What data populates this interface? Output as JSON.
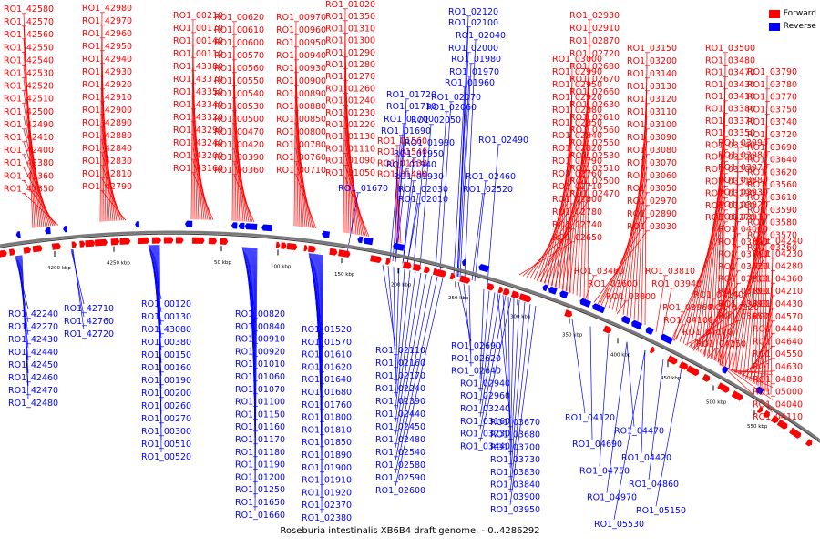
{
  "caption": "Roseburia intestinalis XB6B4 draft genome. - 0..4286292",
  "legend": [
    {
      "label": "Forward",
      "color": "#ff0000"
    },
    {
      "label": "Reverse",
      "color": "#0000ff"
    }
  ],
  "colors": {
    "forward": "#ff0000",
    "reverse": "#0000ff",
    "backbone": "#808080",
    "ticks": "#000000"
  },
  "scale_labels": [
    "4200 kbp",
    "4250 kbp",
    "50 kbp",
    "100 kbp",
    "150 kbp",
    "200 kbp",
    "250 kbp",
    "300 kbp",
    "350 kbp",
    "400 kbp",
    "450 kbp",
    "500 kbp",
    "550 kbp"
  ],
  "forward_columns": [
    [
      "RO1_42580",
      "RO1_42570",
      "RO1_42560",
      "RO1_42550",
      "RO1_42540",
      "RO1_42530",
      "RO1_42520",
      "RO1_42510",
      "RO1_42500",
      "RO1_42490",
      "RO1_42410",
      "RO1_42400",
      "RO1_42380",
      "RO1_42360",
      "RO1_42350"
    ],
    [
      "RO1_42980",
      "RO1_42970",
      "RO1_42960",
      "RO1_42950",
      "RO1_42940",
      "RO1_42930",
      "RO1_42920",
      "RO1_42910",
      "RO1_42900",
      "RO1_42890",
      "RO1_42880",
      "RO1_42840",
      "RO1_42830",
      "RO1_42810",
      "RO1_42790"
    ],
    [
      "RO1_00210",
      "RO1_00170",
      "RO1_00140",
      "RO1_00110",
      "RO1_43380",
      "RO1_43370",
      "RO1_43350",
      "RO1_43340",
      "RO1_43320",
      "RO1_43290",
      "RO1_43240",
      "RO1_43200",
      "RO1_43160"
    ],
    [
      "RO1_00620",
      "RO1_00610",
      "RO1_00600",
      "RO1_00570",
      "RO1_00560",
      "RO1_00550",
      "RO1_00540",
      "RO1_00530",
      "RO1_00500",
      "RO1_00470",
      "RO1_00420",
      "RO1_00390",
      "RO1_00360"
    ],
    [
      "RO1_00970",
      "RO1_00960",
      "RO1_00950",
      "RO1_00940",
      "RO1_00930",
      "RO1_00900",
      "RO1_00890",
      "RO1_00880",
      "RO1_00850",
      "RO1_00800",
      "RO1_00780",
      "RO1_00760",
      "RO1_00710"
    ],
    [
      "RO1_01020",
      "RO1_01350",
      "RO1_01310",
      "RO1_01300",
      "RO1_01290",
      "RO1_01280",
      "RO1_01270",
      "RO1_01260",
      "RO1_01240",
      "RO1_01230",
      "RO1_01220",
      "RO1_01130",
      "RO1_01110",
      "RO1_01090",
      "RO1_01050"
    ],
    [
      "RO1_01560",
      "RO1_01540",
      "RO1_01530",
      "RO1_01490"
    ],
    [
      "RO1_02930",
      "RO1_02910",
      "RO1_02870",
      "RO1_02720",
      "RO1_02680",
      "RO1_02670",
      "RO1_02660",
      "RO1_02630",
      "RO1_02610",
      "RO1_02560",
      "RO1_02550",
      "RO1_02530",
      "RO1_02510",
      "RO1_02500",
      "RO1_02470"
    ],
    [
      "RO1_03000",
      "RO1_02990",
      "RO1_02950",
      "RO1_02920",
      "RO1_02880",
      "RO1_02850",
      "RO1_02840",
      "RO1_02820",
      "RO1_02790",
      "RO1_02760",
      "RO1_02710",
      "RO1_02800",
      "RO1_02780",
      "RO1_02740",
      "RO1_02650"
    ],
    [
      "RO1_03150",
      "RO1_03200",
      "RO1_03140",
      "RO1_03130",
      "RO1_03120",
      "RO1_03110",
      "RO1_03100",
      "RO1_03090",
      "RO1_03080",
      "RO1_03070",
      "RO1_03060",
      "RO1_03050",
      "RO1_02970",
      "RO1_02890",
      "RO1_03030"
    ],
    [
      "RO1_03500",
      "RO1_03480",
      "RO1_03470",
      "RO1_03430",
      "RO1_03410",
      "RO1_03380",
      "RO1_03370",
      "RO1_03350",
      "RO1_03340",
      "RO1_03320",
      "RO1_03300",
      "RO1_03310",
      "RO1_03290",
      "RO1_03280",
      "RO1_03270"
    ],
    [
      "RO1_03790",
      "RO1_03780",
      "RO1_03770",
      "RO1_03750",
      "RO1_03740",
      "RO1_03720",
      "RO1_03690",
      "RO1_03640",
      "RO1_03620",
      "RO1_03560",
      "RO1_03610",
      "RO1_03590",
      "RO1_03580",
      "RO1_03570",
      "RO1_03260"
    ],
    [
      "RO1_03990",
      "RO1_03980",
      "RO1_03970",
      "RO1_03880",
      "RO1_03930",
      "RO1_03920",
      "RO1_03910",
      "RO1_04000",
      "RO1_03890",
      "RO1_03710",
      "RO1_03420",
      "RO1_03210",
      "RO1_03190",
      "RO1_03390",
      "RO1_03650"
    ],
    [
      "RO1_04240",
      "RO1_04230",
      "RO1_04280",
      "RO1_04360",
      "RO1_04210",
      "RO1_04430",
      "RO1_04570",
      "RO1_04440",
      "RO1_04640",
      "RO1_04550",
      "RO1_04630",
      "RO1_04830",
      "RO1_05000",
      "RO1_04040",
      "RO1_04110"
    ]
  ],
  "reverse_top_labels": [
    "RO1_02120",
    "RO1_02100",
    "RO1_02040",
    "RO1_02000",
    "RO1_01980",
    "RO1_01970",
    "RO1_01960",
    "RO1_02070",
    "RO1_02060",
    "RO1_02050",
    "RO1_01720",
    "RO1_01710",
    "RO1_01700",
    "RO1_01690",
    "RO1_01990",
    "RO1_01950",
    "RO1_01940",
    "RO1_01930",
    "RO1_02490",
    "RO1_02460",
    "RO1_02520",
    "RO1_01670",
    "RO1_02030",
    "RO1_02010"
  ],
  "reverse_columns": [
    [
      "RO1_42240",
      "RO1_42270",
      "RO1_42430",
      "RO1_42440",
      "RO1_42450",
      "RO1_42460",
      "RO1_42470",
      "RO1_42480"
    ],
    [
      "RO1_42710",
      "RO1_42760",
      "RO1_42720"
    ],
    [
      "RO1_00120",
      "RO1_00130",
      "RO1_43080",
      "RO1_00380",
      "RO1_00150",
      "RO1_00160",
      "RO1_00190",
      "RO1_00200",
      "RO1_00260",
      "RO1_00270",
      "RO1_00300",
      "RO1_00510",
      "RO1_00520"
    ],
    [
      "RO1_00820",
      "RO1_00840",
      "RO1_00910",
      "RO1_00920",
      "RO1_01010",
      "RO1_01060",
      "RO1_01070",
      "RO1_01100",
      "RO1_01150",
      "RO1_01160",
      "RO1_01170",
      "RO1_01180",
      "RO1_01190",
      "RO1_01200",
      "RO1_01250",
      "RO1_01650",
      "RO1_01660"
    ],
    [
      "RO1_01520",
      "RO1_01570",
      "RO1_01610",
      "RO1_01620",
      "RO1_01640",
      "RO1_01680",
      "RO1_01760",
      "RO1_01800",
      "RO1_01810",
      "RO1_01850",
      "RO1_01890",
      "RO1_01900",
      "RO1_01910",
      "RO1_01920",
      "RO1_02370",
      "RO1_02380"
    ],
    [
      "RO1_02110",
      "RO1_02160",
      "RO1_02170",
      "RO1_02240",
      "RO1_02390",
      "RO1_02440",
      "RO1_02450",
      "RO1_02480",
      "RO1_02540",
      "RO1_02580",
      "RO1_02590",
      "RO1_02600"
    ],
    [
      "RO1_02690",
      "RO1_02620",
      "RO1_02640",
      "RO1_02940",
      "RO1_02960",
      "RO1_03240",
      "RO1_03160",
      "RO1_03230",
      "RO1_03440"
    ],
    [
      "RO1_03670",
      "RO1_03680",
      "RO1_03700",
      "RO1_03730",
      "RO1_03830",
      "RO1_03840",
      "RO1_03900",
      "RO1_03950"
    ],
    [
      "RO1_04120",
      "RO1_04470",
      "RO1_04690",
      "RO1_04420",
      "RO1_04750",
      "RO1_04860",
      "RO1_04970",
      "RO1_05150",
      "RO1_05530"
    ]
  ],
  "forward_bottom_labels": [
    "RO1_03460",
    "RO1_03600",
    "RO1_03800",
    "RO1_03810",
    "RO1_03940",
    "RO1_03960",
    "RO1_04100",
    "RO1_04140",
    "RO1_04220",
    "RO1_04170",
    "RO1_04350"
  ]
}
